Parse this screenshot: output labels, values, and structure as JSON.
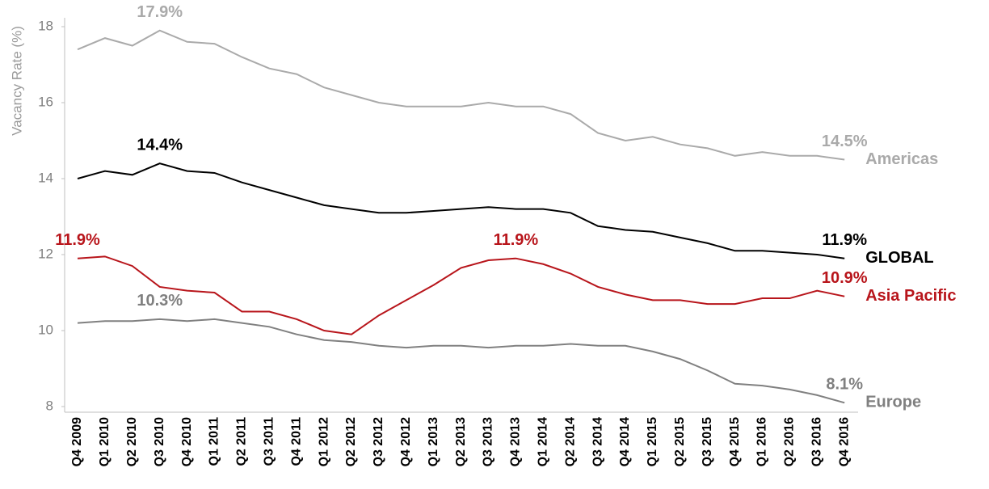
{
  "chart_data": {
    "type": "line",
    "y_label": "Vacancy Rate (%)",
    "categories": [
      "Q4 2009",
      "Q1 2010",
      "Q2 2010",
      "Q3 2010",
      "Q4 2010",
      "Q1 2011",
      "Q2 2011",
      "Q3 2011",
      "Q4 2011",
      "Q1 2012",
      "Q2 2012",
      "Q3 2012",
      "Q4 2012",
      "Q1 2013",
      "Q2 2013",
      "Q3 2013",
      "Q4 2013",
      "Q1 2014",
      "Q2 2014",
      "Q3 2014",
      "Q4 2014",
      "Q1 2015",
      "Q2 2015",
      "Q3 2015",
      "Q4 2015",
      "Q1 2016",
      "Q2 2016",
      "Q3 2016",
      "Q4 2016"
    ],
    "series": [
      {
        "name": "Americas",
        "color": "#aaaaaa",
        "values": [
          17.4,
          17.7,
          17.5,
          17.9,
          17.6,
          17.55,
          17.2,
          16.9,
          16.75,
          16.4,
          16.2,
          16.0,
          15.9,
          15.9,
          15.9,
          16.0,
          15.9,
          15.9,
          15.7,
          15.2,
          15.0,
          15.1,
          14.9,
          14.8,
          14.6,
          14.7,
          14.6,
          14.6,
          14.5
        ],
        "value_labels": [
          null,
          null,
          null,
          "17.9%",
          null,
          null,
          null,
          null,
          null,
          null,
          null,
          null,
          null,
          null,
          null,
          null,
          null,
          null,
          null,
          null,
          null,
          null,
          null,
          null,
          null,
          null,
          null,
          null,
          "14.5%"
        ]
      },
      {
        "name": "GLOBAL",
        "color": "#000000",
        "values": [
          14.0,
          14.2,
          14.1,
          14.4,
          14.2,
          14.15,
          13.9,
          13.7,
          13.5,
          13.3,
          13.2,
          13.1,
          13.1,
          13.15,
          13.2,
          13.25,
          13.2,
          13.2,
          13.1,
          12.75,
          12.65,
          12.6,
          12.45,
          12.3,
          12.1,
          12.1,
          12.05,
          12.0,
          11.9
        ],
        "value_labels": [
          null,
          null,
          null,
          "14.4%",
          null,
          null,
          null,
          null,
          null,
          null,
          null,
          null,
          null,
          null,
          null,
          null,
          null,
          null,
          null,
          null,
          null,
          null,
          null,
          null,
          null,
          null,
          null,
          null,
          "11.9%"
        ]
      },
      {
        "name": "Asia Pacific",
        "color": "#b8151b",
        "values": [
          11.9,
          11.95,
          11.7,
          11.15,
          11.05,
          11.0,
          10.5,
          10.5,
          10.3,
          10.0,
          9.9,
          10.4,
          10.8,
          11.2,
          11.65,
          11.85,
          11.9,
          11.75,
          11.5,
          11.15,
          10.95,
          10.8,
          10.8,
          10.7,
          10.7,
          10.85,
          10.85,
          11.05,
          10.9
        ],
        "value_labels": [
          "11.9%",
          null,
          null,
          null,
          null,
          null,
          null,
          null,
          null,
          null,
          null,
          null,
          null,
          null,
          null,
          null,
          "11.9%",
          null,
          null,
          null,
          null,
          null,
          null,
          null,
          null,
          null,
          null,
          null,
          "10.9%"
        ]
      },
      {
        "name": "Europe",
        "color": "#808080",
        "values": [
          10.2,
          10.25,
          10.25,
          10.3,
          10.25,
          10.3,
          10.2,
          10.1,
          9.9,
          9.75,
          9.7,
          9.6,
          9.55,
          9.6,
          9.6,
          9.55,
          9.6,
          9.6,
          9.65,
          9.6,
          9.6,
          9.45,
          9.25,
          8.95,
          8.6,
          8.55,
          8.45,
          8.3,
          8.1
        ],
        "value_labels": [
          null,
          null,
          null,
          "10.3%",
          null,
          null,
          null,
          null,
          null,
          null,
          null,
          null,
          null,
          null,
          null,
          null,
          null,
          null,
          null,
          null,
          null,
          null,
          null,
          null,
          null,
          null,
          null,
          null,
          "8.1%"
        ]
      }
    ],
    "ylim": [
      8,
      18
    ],
    "yticks": [
      8,
      10,
      12,
      14,
      16,
      18
    ],
    "grid": false
  }
}
